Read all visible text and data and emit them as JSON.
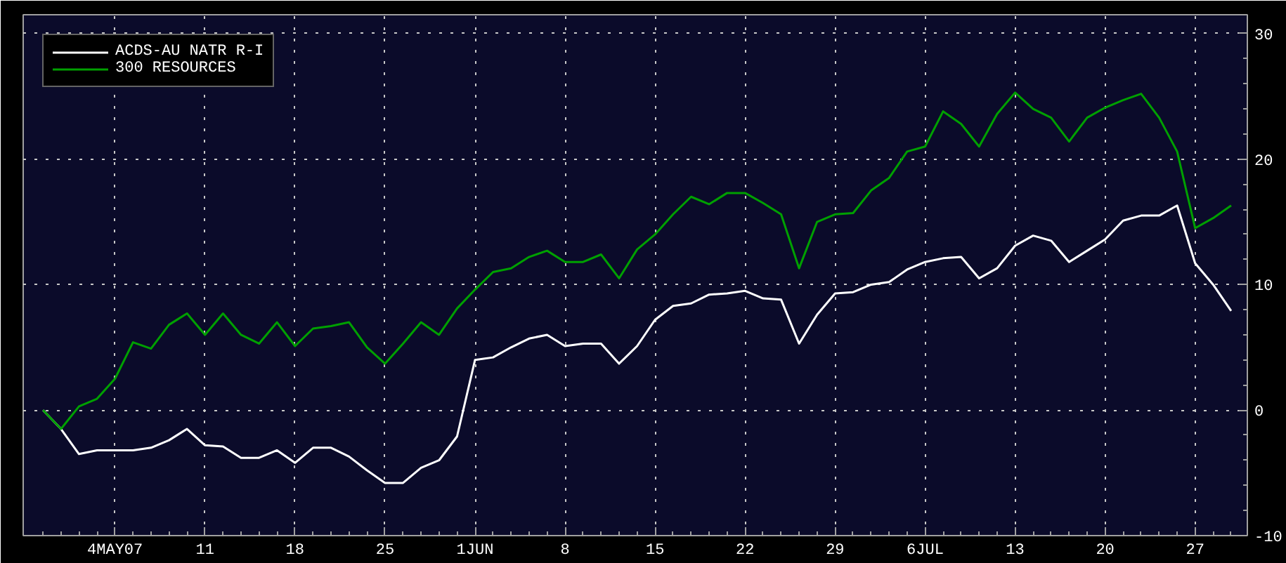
{
  "chart_data": {
    "type": "line",
    "categories": [
      null,
      null,
      null,
      null,
      "4MAY07",
      null,
      null,
      null,
      null,
      "11",
      null,
      null,
      null,
      null,
      "18",
      null,
      null,
      null,
      null,
      "25",
      null,
      null,
      null,
      null,
      "1JUN",
      null,
      null,
      null,
      null,
      "8",
      null,
      null,
      null,
      null,
      "15",
      null,
      null,
      null,
      null,
      "22",
      null,
      null,
      null,
      null,
      "29",
      null,
      null,
      null,
      null,
      "6JUL",
      null,
      null,
      null,
      null,
      "13",
      null,
      null,
      null,
      null,
      "20",
      null,
      null,
      null,
      null,
      "27",
      null,
      null
    ],
    "series": [
      {
        "name": "ACDS-AU NATR R-I",
        "color": "#ffffff",
        "values": [
          0,
          -1.5,
          -3.5,
          -3.2,
          -3.2,
          -3.2,
          -3.0,
          -2.4,
          -1.5,
          -2.8,
          -2.9,
          -3.8,
          -3.8,
          -3.2,
          -4.2,
          -3.0,
          -3.0,
          -3.7,
          -4.8,
          -5.8,
          -5.8,
          -4.6,
          -4.0,
          -2.1,
          4.0,
          4.2,
          5.0,
          5.7,
          6.0,
          5.1,
          5.3,
          5.3,
          3.7,
          5.1,
          7.2,
          8.3,
          8.5,
          9.2,
          9.3,
          9.5,
          8.9,
          8.8,
          5.3,
          7.6,
          9.3,
          9.4,
          10.0,
          10.2,
          11.2,
          11.8,
          12.1,
          12.2,
          10.5,
          11.3,
          13.1,
          13.9,
          13.5,
          11.8,
          12.7,
          13.6,
          15.1,
          15.5,
          15.5,
          16.3,
          11.7,
          10.0,
          7.9
        ]
      },
      {
        "name": "300 RESOURCES",
        "color": "#00a000",
        "values": [
          0,
          -1.5,
          0.3,
          0.9,
          2.5,
          5.4,
          4.9,
          6.8,
          7.7,
          6.0,
          7.7,
          6.0,
          5.3,
          7.0,
          5.1,
          6.5,
          6.7,
          7.0,
          5.0,
          3.7,
          5.3,
          7.0,
          6.0,
          8.1,
          9.6,
          11.0,
          11.3,
          12.2,
          12.7,
          11.8,
          11.8,
          12.4,
          10.5,
          12.8,
          14.0,
          15.6,
          17.0,
          16.4,
          17.3,
          17.3,
          16.5,
          15.6,
          11.3,
          15.0,
          15.6,
          15.7,
          17.5,
          18.5,
          20.6,
          21.0,
          23.8,
          22.8,
          21.0,
          23.6,
          25.3,
          24.0,
          23.3,
          21.4,
          23.3,
          24.1,
          24.7,
          25.2,
          23.3,
          20.6,
          14.5,
          15.3,
          16.3
        ]
      }
    ],
    "ylim": [
      -10,
      31.5
    ],
    "yticks": [
      -10,
      0,
      10,
      20,
      30
    ],
    "grid": true,
    "legend": "top left",
    "line_style": "solid"
  }
}
